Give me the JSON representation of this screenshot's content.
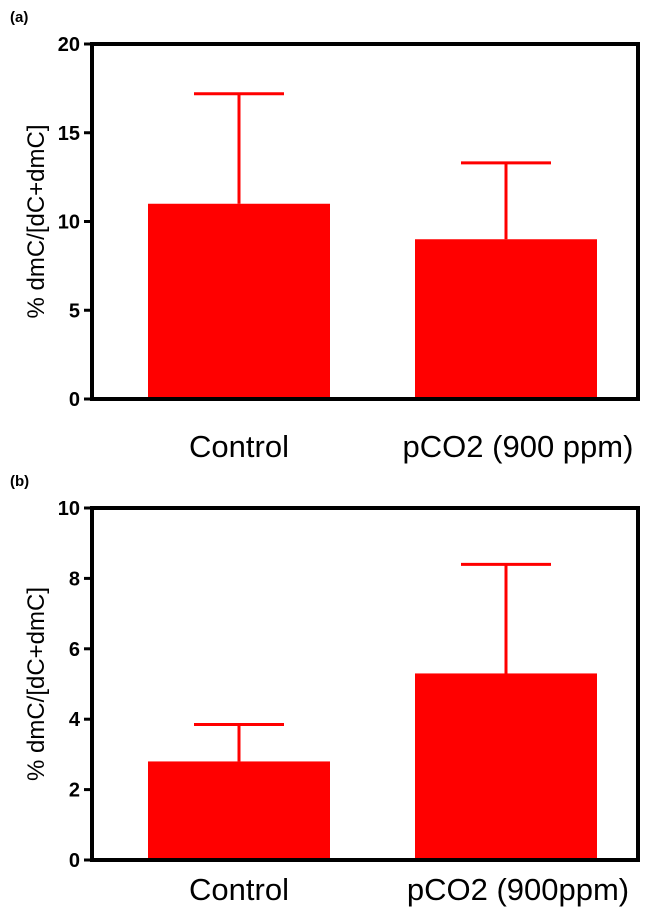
{
  "chart_data": [
    {
      "panel_label": "(a)",
      "type": "bar",
      "categories": [
        "Control",
        "pCO2 (900 ppm)"
      ],
      "values": [
        11.0,
        9.0
      ],
      "error_upper": [
        17.2,
        13.3
      ],
      "ylabel": "% dmC/[dC+dmC]",
      "ylim": [
        0,
        20
      ],
      "yticks": [
        0,
        5,
        10,
        15,
        20
      ],
      "grid": false,
      "bar_color": "#ff0000",
      "axis_color": "#000000"
    },
    {
      "panel_label": "(b)",
      "type": "bar",
      "categories": [
        "Control",
        "pCO2 (900ppm)"
      ],
      "values": [
        2.8,
        5.3
      ],
      "error_upper": [
        3.85,
        8.4
      ],
      "ylabel": "% dmC/[dC+dmC]",
      "ylim": [
        0,
        10
      ],
      "yticks": [
        0,
        2,
        4,
        6,
        8,
        10
      ],
      "grid": false,
      "bar_color": "#ff0000",
      "axis_color": "#000000"
    }
  ]
}
